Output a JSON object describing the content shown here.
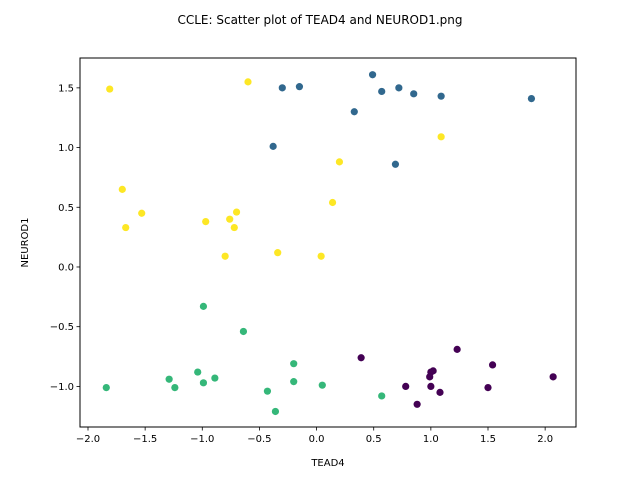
{
  "chart_data": {
    "type": "scatter",
    "title": "CCLE: Scatter plot of TEAD4 and NEUROD1.png",
    "xlabel": "TEAD4",
    "ylabel": "NEUROD1",
    "xlim": [
      -2.07,
      2.27
    ],
    "ylim": [
      -1.34,
      1.75
    ],
    "xticks": [
      -2.0,
      -1.5,
      -1.0,
      -0.5,
      0.0,
      0.5,
      1.0,
      1.5,
      2.0
    ],
    "yticks": [
      -1.0,
      -0.5,
      0.0,
      0.5,
      1.0,
      1.5
    ],
    "xtick_labels": [
      "−2.0",
      "−1.5",
      "−1.0",
      "−0.5",
      "0.0",
      "0.5",
      "1.0",
      "1.5",
      "2.0"
    ],
    "ytick_labels": [
      "−1.0",
      "−0.5",
      "0.0",
      "0.5",
      "1.0",
      "1.5"
    ],
    "grid": false,
    "series": [
      {
        "color": "#31688e",
        "points": [
          [
            0.49,
            1.61
          ],
          [
            -0.3,
            1.5
          ],
          [
            -0.15,
            1.51
          ],
          [
            0.57,
            1.47
          ],
          [
            0.72,
            1.5
          ],
          [
            0.85,
            1.45
          ],
          [
            1.09,
            1.43
          ],
          [
            1.88,
            1.41
          ],
          [
            0.33,
            1.3
          ],
          [
            -0.38,
            1.01
          ],
          [
            0.69,
            0.86
          ]
        ]
      },
      {
        "color": "#fde725",
        "points": [
          [
            -1.81,
            1.49
          ],
          [
            -0.6,
            1.55
          ],
          [
            1.09,
            1.09
          ],
          [
            0.2,
            0.88
          ],
          [
            -1.7,
            0.65
          ],
          [
            0.14,
            0.54
          ],
          [
            -1.53,
            0.45
          ],
          [
            -0.7,
            0.46
          ],
          [
            -0.76,
            0.4
          ],
          [
            -0.97,
            0.38
          ],
          [
            -1.67,
            0.33
          ],
          [
            -0.72,
            0.33
          ],
          [
            -0.34,
            0.12
          ],
          [
            -0.8,
            0.09
          ],
          [
            0.04,
            0.09
          ]
        ]
      },
      {
        "color": "#35b779",
        "points": [
          [
            -0.99,
            -0.33
          ],
          [
            -0.64,
            -0.54
          ],
          [
            -0.2,
            -0.81
          ],
          [
            -1.04,
            -0.88
          ],
          [
            -0.89,
            -0.93
          ],
          [
            -1.29,
            -0.94
          ],
          [
            -0.2,
            -0.96
          ],
          [
            -0.99,
            -0.97
          ],
          [
            0.05,
            -0.99
          ],
          [
            -1.84,
            -1.01
          ],
          [
            -1.24,
            -1.01
          ],
          [
            -0.43,
            -1.04
          ],
          [
            0.57,
            -1.08
          ],
          [
            -0.36,
            -1.21
          ]
        ]
      },
      {
        "color": "#440154",
        "points": [
          [
            1.23,
            -0.69
          ],
          [
            0.39,
            -0.76
          ],
          [
            1.54,
            -0.82
          ],
          [
            1.0,
            -0.88
          ],
          [
            1.02,
            -0.87
          ],
          [
            0.99,
            -0.92
          ],
          [
            2.07,
            -0.92
          ],
          [
            0.78,
            -1.0
          ],
          [
            1.0,
            -1.0
          ],
          [
            1.5,
            -1.01
          ],
          [
            1.08,
            -1.05
          ],
          [
            0.88,
            -1.15
          ]
        ]
      }
    ]
  }
}
